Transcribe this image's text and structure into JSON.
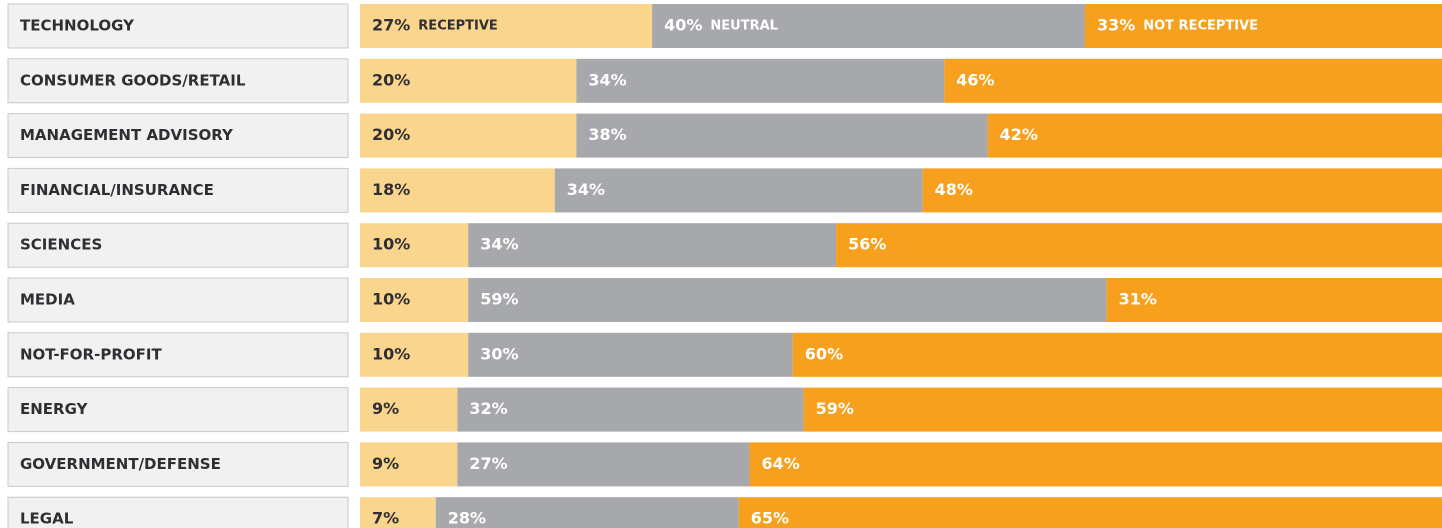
{
  "chart_data": {
    "type": "stacked-bar-horizontal",
    "categories": [
      "TECHNOLOGY",
      "CONSUMER GOODS/RETAIL",
      "MANAGEMENT ADVISORY",
      "FINANCIAL/INSURANCE",
      "SCIENCES",
      "MEDIA",
      "NOT-FOR-PROFIT",
      "ENERGY",
      "GOVERNMENT/DEFENSE",
      "LEGAL"
    ],
    "xlim": [
      0,
      100
    ],
    "series": [
      {
        "name": "RECEPTIVE",
        "color": "#fad58d",
        "values": [
          27,
          20,
          20,
          18,
          10,
          10,
          10,
          9,
          9,
          7
        ],
        "value_labels": [
          "27%",
          "20%",
          "20%",
          "18%",
          "10%",
          "10%",
          "10%",
          "9%",
          "9%",
          "7%"
        ]
      },
      {
        "name": "NEUTRAL",
        "color": "#a7a8ab",
        "values": [
          40,
          34,
          38,
          34,
          34,
          59,
          30,
          32,
          27,
          28
        ],
        "value_labels": [
          "40%",
          "34%",
          "38%",
          "34%",
          "34%",
          "59%",
          "30%",
          "32%",
          "27%",
          "28%"
        ]
      },
      {
        "name": "NOT RECEPTIVE",
        "color": "#f6a01e",
        "values": [
          33,
          46,
          42,
          48,
          56,
          31,
          60,
          59,
          64,
          65
        ],
        "value_labels": [
          "33%",
          "46%",
          "42%",
          "48%",
          "56%",
          "31%",
          "60%",
          "59%",
          "64%",
          "65%"
        ]
      }
    ]
  }
}
